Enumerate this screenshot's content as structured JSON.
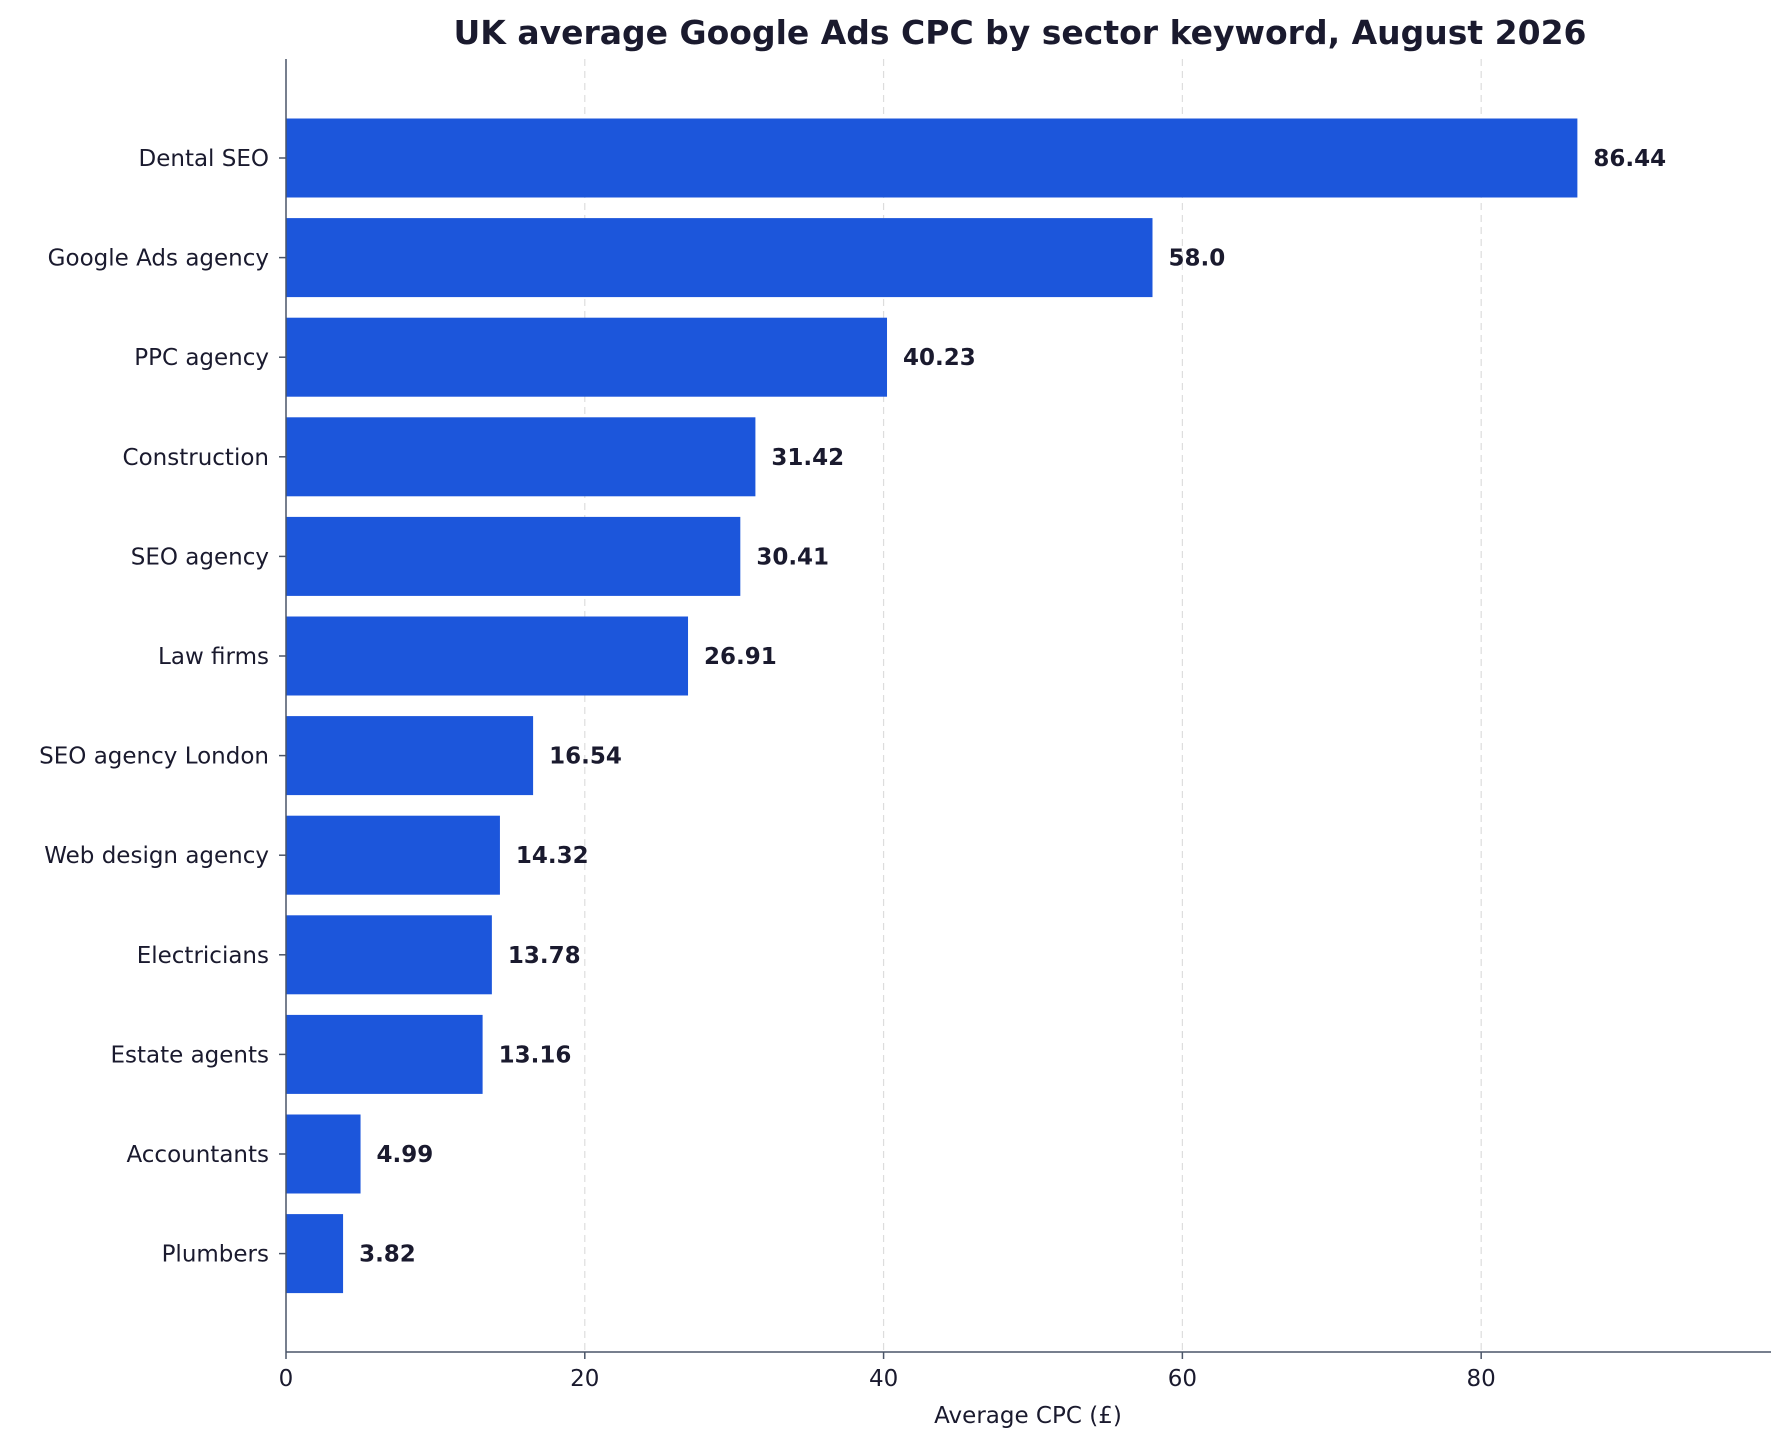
{
  "colors": {
    "bar": "#1c56db",
    "axis": "#4a5568",
    "grid": "#dddddd",
    "text": "#1a1a2e"
  },
  "chart_data": {
    "type": "bar",
    "orientation": "horizontal",
    "title": "UK average Google Ads CPC by sector keyword, August 2026",
    "xlabel": "Average CPC (£)",
    "ylabel": "",
    "xlim": [
      0,
      99.4
    ],
    "xticks": [
      0,
      20,
      40,
      60,
      80
    ],
    "grid": "x-dashed",
    "categories": [
      "Dental SEO",
      "Google Ads agency",
      "PPC agency",
      "Construction",
      "SEO agency",
      "Law firms",
      "SEO agency London",
      "Web design agency",
      "Electricians",
      "Estate agents",
      "Accountants",
      "Plumbers"
    ],
    "values": [
      86.44,
      58.0,
      40.23,
      31.42,
      30.41,
      26.91,
      16.54,
      14.32,
      13.78,
      13.16,
      4.99,
      3.82
    ],
    "value_labels": [
      "86.44",
      "58.0",
      "40.23",
      "31.42",
      "30.41",
      "26.91",
      "16.54",
      "14.32",
      "13.78",
      "13.16",
      "4.99",
      "3.82"
    ]
  }
}
